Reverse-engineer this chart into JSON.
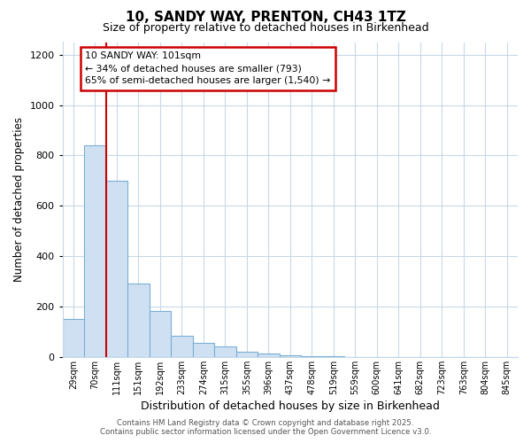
{
  "title": "10, SANDY WAY, PRENTON, CH43 1TZ",
  "subtitle": "Size of property relative to detached houses in Birkenhead",
  "xlabel": "Distribution of detached houses by size in Birkenhead",
  "ylabel": "Number of detached properties",
  "categories": [
    "29sqm",
    "70sqm",
    "111sqm",
    "151sqm",
    "192sqm",
    "233sqm",
    "274sqm",
    "315sqm",
    "355sqm",
    "396sqm",
    "437sqm",
    "478sqm",
    "519sqm",
    "559sqm",
    "600sqm",
    "641sqm",
    "682sqm",
    "723sqm",
    "763sqm",
    "804sqm",
    "845sqm"
  ],
  "values": [
    150,
    840,
    700,
    290,
    182,
    85,
    57,
    42,
    22,
    15,
    5,
    2,
    2,
    1,
    1,
    1,
    1,
    1,
    0,
    0,
    0
  ],
  "bar_fill_color": "#cfe0f3",
  "bar_edge_color": "#7aafd4",
  "grid_color": "#c8d8e8",
  "red_line_x": 2,
  "annotation_title": "10 SANDY WAY: 101sqm",
  "annotation_line1": "← 34% of detached houses are smaller (793)",
  "annotation_line2": "65% of semi-detached houses are larger (1,540) →",
  "annotation_box_color": "#ffffff",
  "annotation_border_color": "#cc0000",
  "red_line_color": "#cc0000",
  "ylim": [
    0,
    1250
  ],
  "yticks": [
    0,
    200,
    400,
    600,
    800,
    1000,
    1200
  ],
  "footer_line1": "Contains HM Land Registry data © Crown copyright and database right 2025.",
  "footer_line2": "Contains public sector information licensed under the Open Government Licence v3.0.",
  "background_color": "#ffffff",
  "plot_background_color": "#ffffff"
}
